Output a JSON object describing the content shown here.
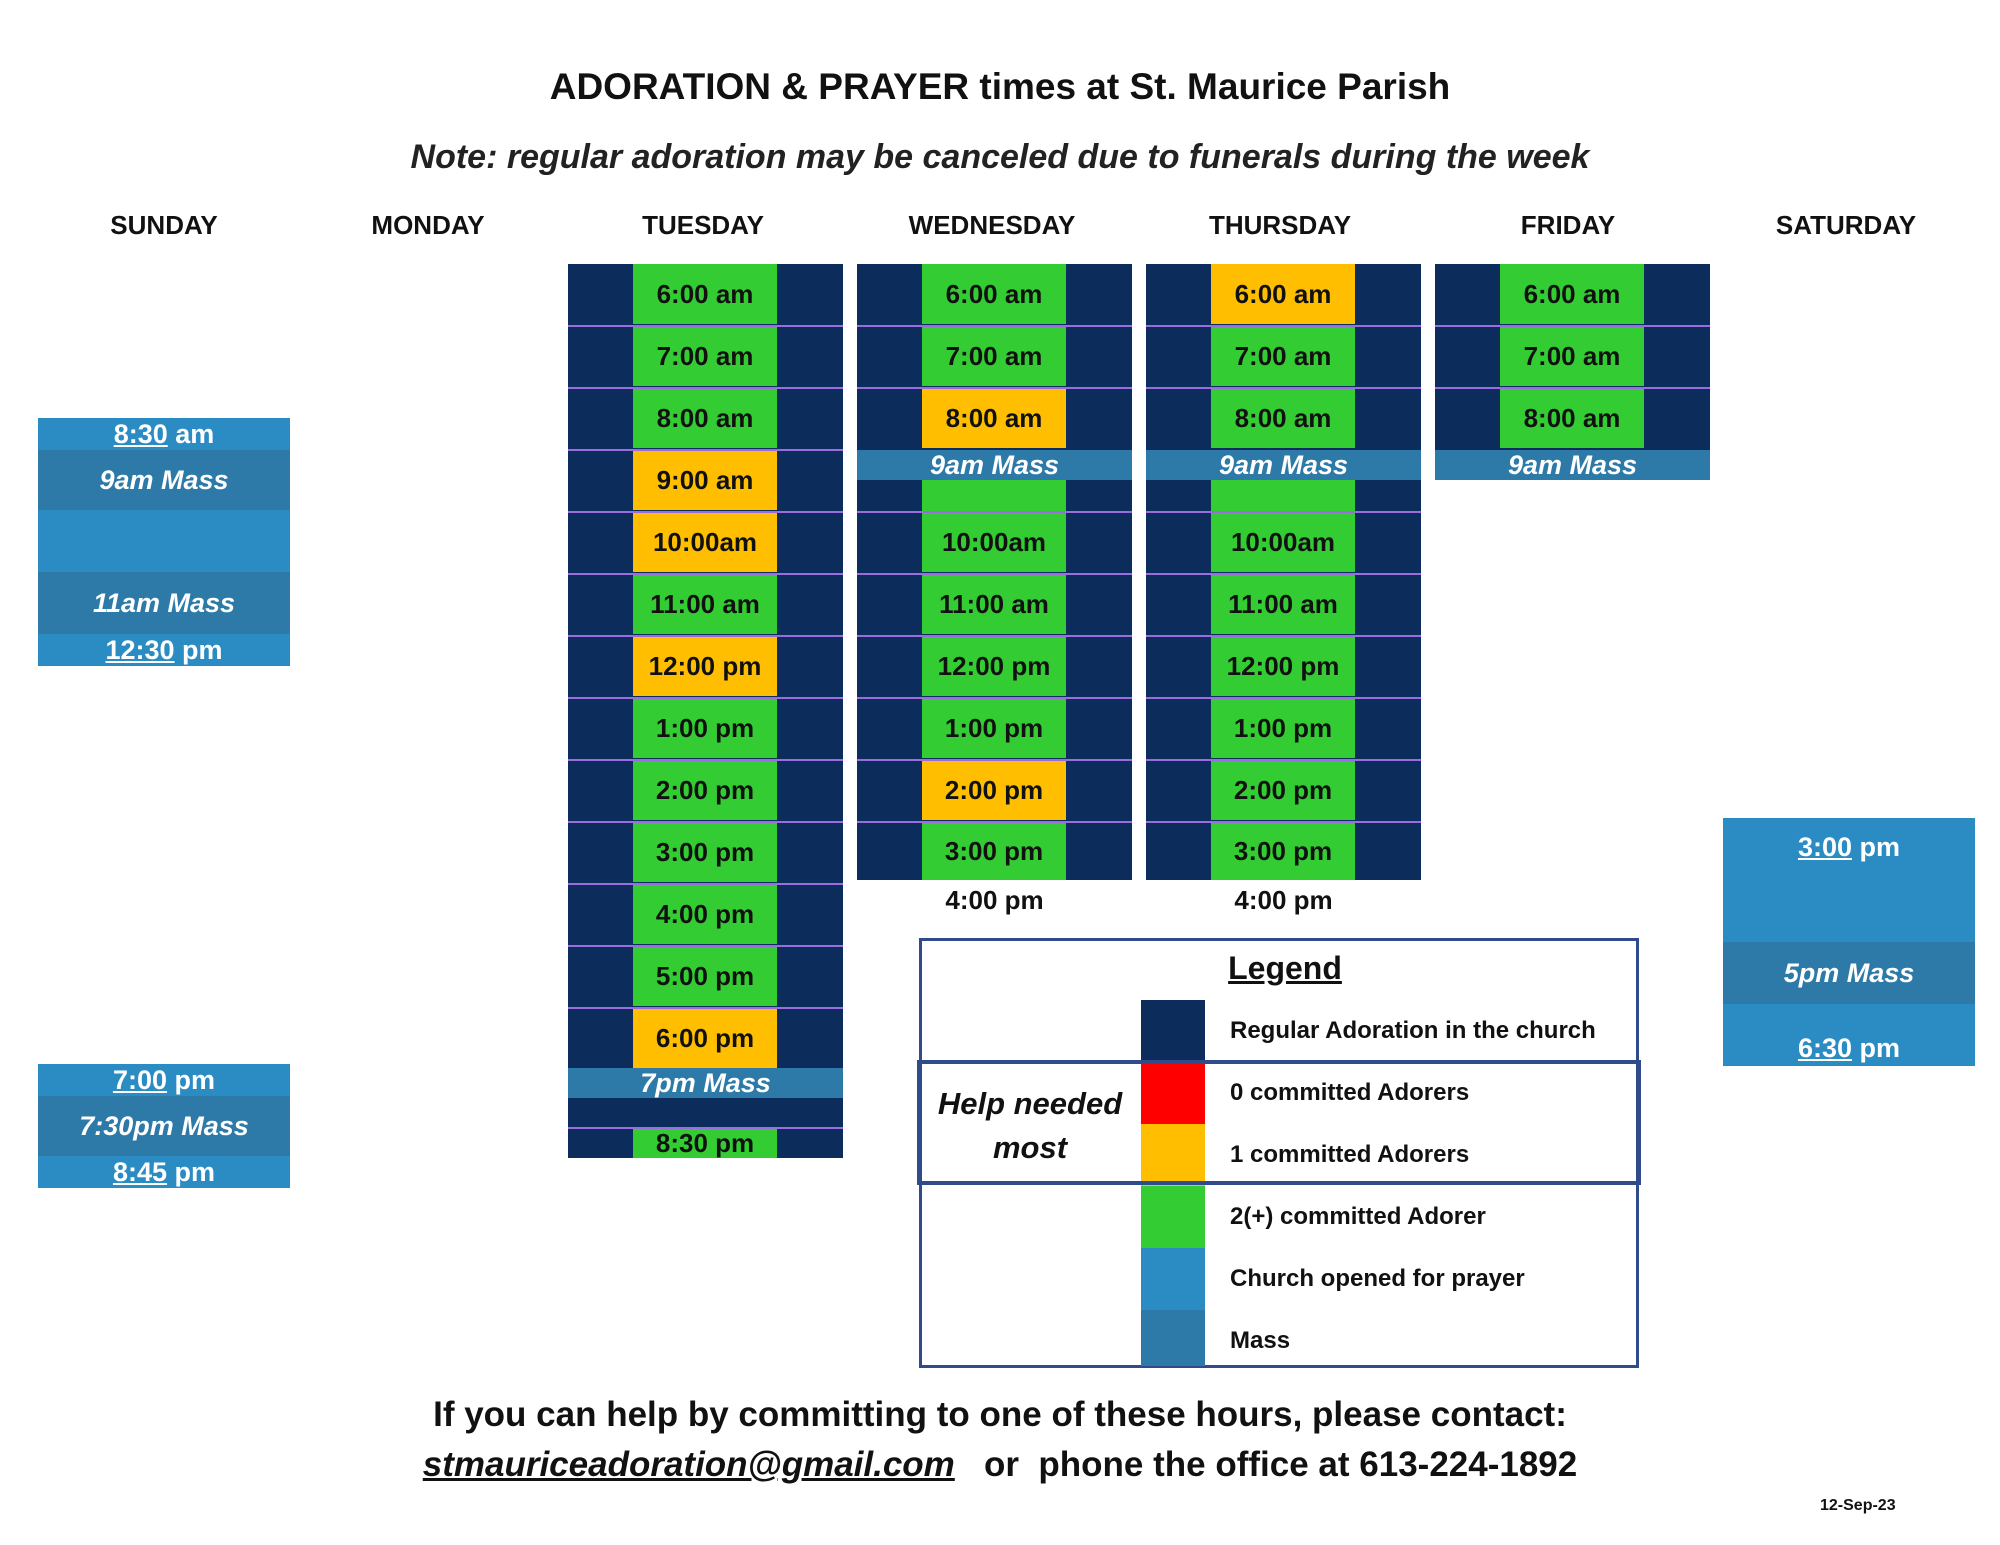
{
  "title": "ADORATION & PRAYER times at St. Maurice Parish",
  "note": "Note:  regular adoration may be canceled due to funerals during the week",
  "days": [
    "SUNDAY",
    "MONDAY",
    "TUESDAY",
    "WEDNESDAY",
    "THURSDAY",
    "FRIDAY",
    "SATURDAY"
  ],
  "colors": {
    "regular": "#0c2d5c",
    "zero": "#ff0000",
    "one": "#ffbf00",
    "two_plus": "#33cc33",
    "open": "#2b8cc4",
    "mass": "#2d7aa8",
    "grid_line": "#9a6ce0"
  },
  "sunday": {
    "open_830": [
      "8:30",
      " am"
    ],
    "mass_9": "9am Mass",
    "mass_11": "11am Mass",
    "open_1230": [
      "12:30",
      " pm"
    ],
    "open_700": [
      "7:00",
      " pm"
    ],
    "mass_730": "7:30pm Mass",
    "open_845": [
      "8:45",
      " pm"
    ]
  },
  "tuesday": {
    "slots": [
      {
        "time": "6:00 am",
        "status": "green"
      },
      {
        "time": "7:00 am",
        "status": "green"
      },
      {
        "time": "8:00 am",
        "status": "green"
      },
      {
        "time": "9:00 am",
        "status": "amber"
      },
      {
        "time": "10:00am",
        "status": "amber"
      },
      {
        "time": "11:00 am",
        "status": "green"
      },
      {
        "time": "12:00 pm",
        "status": "amber"
      },
      {
        "time": "1:00 pm",
        "status": "green"
      },
      {
        "time": "2:00 pm",
        "status": "green"
      },
      {
        "time": "3:00 pm",
        "status": "green"
      },
      {
        "time": "4:00 pm",
        "status": "green"
      },
      {
        "time": "5:00 pm",
        "status": "green"
      },
      {
        "time": "6:00 pm",
        "status": "amber"
      }
    ],
    "mass": "7pm Mass",
    "last": "8:30 pm"
  },
  "wednesday": {
    "morning": [
      {
        "time": "6:00 am",
        "status": "green"
      },
      {
        "time": "7:00 am",
        "status": "green"
      },
      {
        "time": "8:00 am",
        "status": "amber"
      }
    ],
    "mass": "9am Mass",
    "afternoon": [
      {
        "time": "10:00am",
        "status": "green"
      },
      {
        "time": "11:00 am",
        "status": "green"
      },
      {
        "time": "12:00 pm",
        "status": "green"
      },
      {
        "time": "1:00 pm",
        "status": "green"
      },
      {
        "time": "2:00 pm",
        "status": "amber"
      },
      {
        "time": "3:00 pm",
        "status": "green"
      }
    ],
    "end": "4:00 pm"
  },
  "thursday": {
    "morning": [
      {
        "time": "6:00 am",
        "status": "amber"
      },
      {
        "time": "7:00 am",
        "status": "green"
      },
      {
        "time": "8:00 am",
        "status": "green"
      }
    ],
    "mass": "9am Mass",
    "afternoon": [
      {
        "time": "10:00am",
        "status": "green"
      },
      {
        "time": "11:00 am",
        "status": "green"
      },
      {
        "time": "12:00 pm",
        "status": "green"
      },
      {
        "time": "1:00 pm",
        "status": "green"
      },
      {
        "time": "2:00 pm",
        "status": "green"
      },
      {
        "time": "3:00 pm",
        "status": "green"
      }
    ],
    "end": "4:00 pm"
  },
  "friday": {
    "morning": [
      {
        "time": "6:00 am",
        "status": "green"
      },
      {
        "time": "7:00 am",
        "status": "green"
      },
      {
        "time": "8:00 am",
        "status": "green"
      }
    ],
    "mass": "9am Mass"
  },
  "saturday": {
    "open_300": [
      "3:00",
      " pm"
    ],
    "mass_5": "5pm Mass",
    "open_630": [
      "6:30",
      " pm"
    ]
  },
  "legend": {
    "title": "Legend",
    "help_line1": "Help needed",
    "help_line2": "most",
    "items": [
      "Regular Adoration in the church",
      "0 committed Adorers",
      "1 committed Adorers",
      "2(+) committed Adorer",
      "Church opened for prayer",
      "Mass"
    ]
  },
  "footer": {
    "line1": "If you can help by committing to one of these hours, please contact:",
    "email": "stmauriceadoration@gmail.com",
    "phone_text": "   or  phone the office at 613-224-1892"
  },
  "date": "12-Sep-23"
}
